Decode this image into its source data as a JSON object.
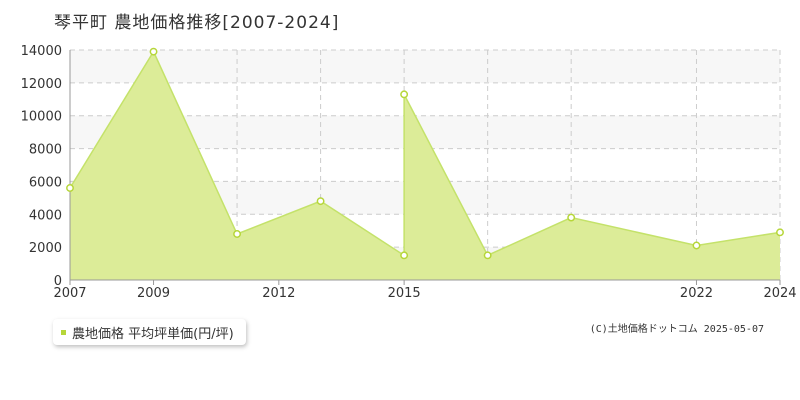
{
  "title": "琴平町 農地価格推移[2007-2024]",
  "legend": {
    "label": "農地価格 平均坪単価(円/坪)"
  },
  "copyright": "(C)土地価格ドットコム 2025-05-07",
  "colors": {
    "area_fill": "#dcec98",
    "line": "#c4e26a",
    "marker": "#b6d639",
    "grid": "#cccccc",
    "plot_band": "#f7f7f7"
  },
  "chart_data": {
    "type": "area",
    "title": "琴平町 農地価格推移[2007-2024]",
    "xlabel": "",
    "ylabel": "",
    "x_tick_labels": [
      "2007",
      "2009",
      "2012",
      "2015",
      "2022",
      "2024"
    ],
    "y_tick_labels": [
      "0",
      "2000",
      "4000",
      "6000",
      "8000",
      "10000",
      "12000",
      "14000"
    ],
    "xlim": [
      2007,
      2024
    ],
    "ylim": [
      0,
      14000
    ],
    "grid": true,
    "legend_position": "bottom-left",
    "series": [
      {
        "name": "農地価格 平均坪単価(円/坪)",
        "points": [
          {
            "x": 2007,
            "y": 5600
          },
          {
            "x": 2009,
            "y": 13900
          },
          {
            "x": 2011,
            "y": 2800
          },
          {
            "x": 2013,
            "y": 4800
          },
          {
            "x": 2015,
            "y": 1500
          },
          {
            "x": 2015,
            "y": 11300
          },
          {
            "x": 2017,
            "y": 1500
          },
          {
            "x": 2019,
            "y": 3800
          },
          {
            "x": 2022,
            "y": 2100
          },
          {
            "x": 2024,
            "y": 2900
          }
        ]
      }
    ]
  }
}
